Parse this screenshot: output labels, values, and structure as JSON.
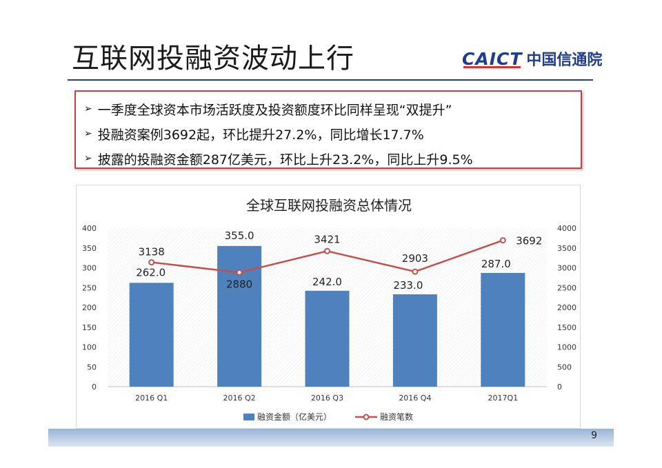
{
  "slide": {
    "title": "互联网投融资波动上行",
    "logo_latin": "CAICT",
    "logo_chinese": "中国信通院",
    "page_number": "9"
  },
  "bullets": [
    "一季度全球资本市场活跃度及投资额度环比同样呈现“双提升”",
    "投融资案例3692起，环比提升27.2%，同比增长17.7%",
    "披露的投融资金额287亿美元，环比上升23.2%，同比上升9.5%"
  ],
  "colors": {
    "title_rule": "#1f3f8c",
    "bullet_border": "#d23b3b",
    "bar": "#4f81bd",
    "line": "#c0504d"
  },
  "chart_data": {
    "type": "bar",
    "title": "全球互联网投融资总体情况",
    "categories": [
      "2016 Q1",
      "2016 Q2",
      "2016 Q3",
      "2016 Q4",
      "2017Q1"
    ],
    "series": [
      {
        "name": "融资金额（亿美元）",
        "type": "bar",
        "axis": "left",
        "values": [
          262.0,
          355.0,
          242.0,
          233.0,
          287.0
        ],
        "labels": [
          "262.0",
          "355.0",
          "242.0",
          "233.0",
          "287.0"
        ]
      },
      {
        "name": "融资笔数",
        "type": "line",
        "axis": "right",
        "values": [
          3138,
          2880,
          3421,
          2903,
          3692
        ],
        "labels": [
          "3138",
          "2880",
          "3421",
          "2903",
          "3692"
        ]
      }
    ],
    "y_left": {
      "min": 0,
      "max": 400,
      "ticks": [
        "0",
        "50",
        "100",
        "150",
        "200",
        "250",
        "300",
        "350",
        "400"
      ]
    },
    "y_right": {
      "min": 0,
      "max": 4000,
      "ticks": [
        "0",
        "500",
        "1000",
        "1500",
        "2000",
        "2500",
        "3000",
        "3500",
        "4000"
      ]
    },
    "legend_position": "bottom",
    "grid": false
  }
}
